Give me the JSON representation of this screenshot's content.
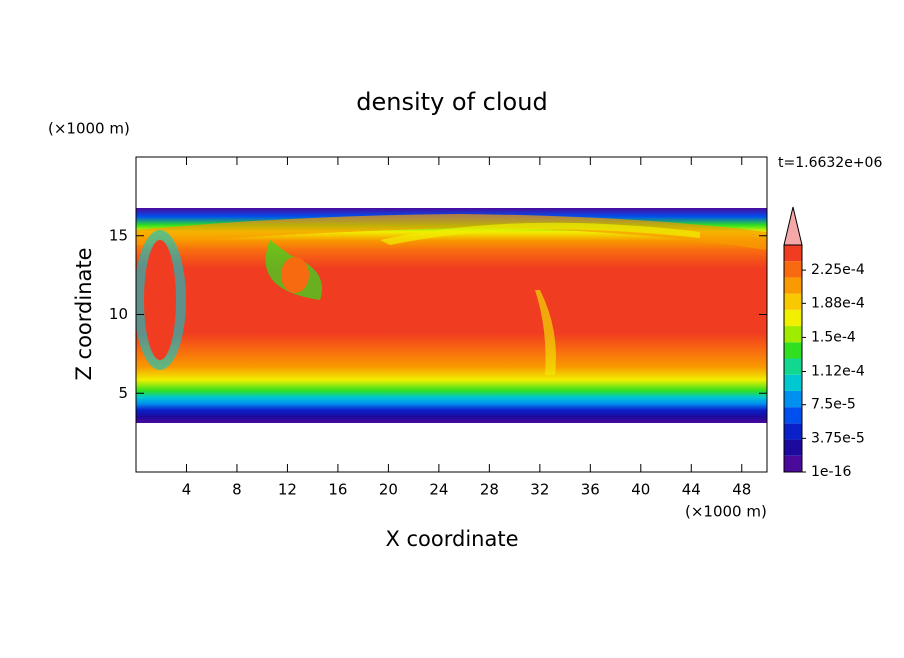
{
  "chart_data": {
    "type": "contour",
    "title": "density of cloud",
    "x_label": "X coordinate",
    "y_label": "Z coordinate",
    "x_unit": "(×1000 m)",
    "y_unit": "(×1000 m)",
    "annotation": "t=1.6632e+06",
    "xlim": [
      0,
      50
    ],
    "xticks": [
      4,
      8,
      12,
      16,
      20,
      24,
      28,
      32,
      36,
      40,
      44,
      48
    ],
    "ylim": [
      0,
      20
    ],
    "yticks": [
      5,
      10,
      15
    ],
    "colorbar": {
      "clim": [
        1e-16,
        0.000253
      ],
      "colors": [
        "#4a0a9c",
        "#1c0a9e",
        "#0a20c8",
        "#0050f0",
        "#0090f0",
        "#00c8d0",
        "#10d890",
        "#30e020",
        "#a0ec00",
        "#f0f000",
        "#f8c800",
        "#f89a00",
        "#f86a10",
        "#f03c20"
      ],
      "extend_color": "#f4a8a8",
      "ticks": [
        {
          "value": 1e-16,
          "label": "1e-16"
        },
        {
          "value": 3.75e-05,
          "label": "3.75e-5"
        },
        {
          "value": 7.5e-05,
          "label": "7.5e-5"
        },
        {
          "value": 0.000112,
          "label": "1.12e-4"
        },
        {
          "value": 0.00015,
          "label": "1.5e-4"
        },
        {
          "value": 0.000188,
          "label": "1.88e-4"
        },
        {
          "value": 0.000225,
          "label": "2.25e-4"
        }
      ]
    }
  }
}
